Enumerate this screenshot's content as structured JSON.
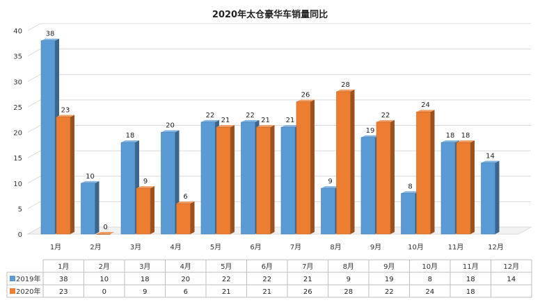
{
  "chart_data": {
    "type": "bar",
    "title": "2020年太仓豪华车销量同比",
    "categories": [
      "1月",
      "2月",
      "3月",
      "4月",
      "5月",
      "6月",
      "7月",
      "8月",
      "9月",
      "10月",
      "11月",
      "12月"
    ],
    "series": [
      {
        "name": "2019年",
        "values": [
          38,
          10,
          18,
          20,
          22,
          22,
          21,
          9,
          19,
          8,
          18,
          14
        ],
        "color": "#5b9bd5"
      },
      {
        "name": "2020年",
        "values": [
          23,
          0,
          9,
          6,
          21,
          21,
          26,
          28,
          22,
          24,
          18,
          null
        ],
        "color": "#ed7d31"
      }
    ],
    "ylim": [
      0,
      40
    ],
    "yticks": [
      "0",
      "5",
      "10",
      "15",
      "20",
      "25",
      "30",
      "35",
      "40"
    ],
    "grid": true,
    "data_table": true
  }
}
